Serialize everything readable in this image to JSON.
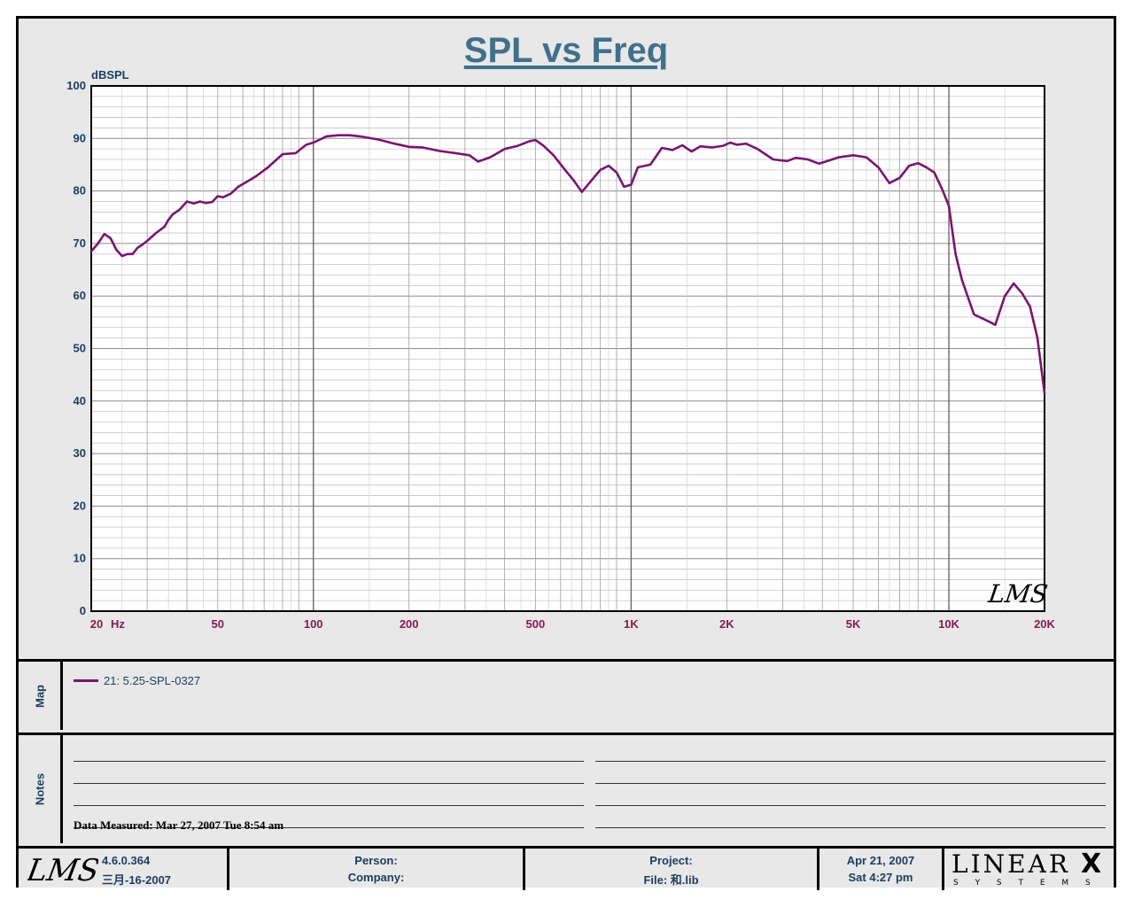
{
  "title": "SPL vs Freq",
  "chart_data": {
    "type": "line",
    "title": "SPL vs Freq",
    "ylabel": "dBSPL",
    "xlabel": "Hz",
    "x_scale": "log",
    "xlim": [
      20,
      20000
    ],
    "ylim": [
      0,
      100
    ],
    "grid": true,
    "y_ticks": [
      0,
      10,
      20,
      30,
      40,
      50,
      60,
      70,
      80,
      90,
      100
    ],
    "x_ticks": [
      {
        "value": 20,
        "label": "20"
      },
      {
        "value": 50,
        "label": "50"
      },
      {
        "value": 100,
        "label": "100"
      },
      {
        "value": 200,
        "label": "200"
      },
      {
        "value": 500,
        "label": "500"
      },
      {
        "value": 1000,
        "label": "1K"
      },
      {
        "value": 2000,
        "label": "2K"
      },
      {
        "value": 5000,
        "label": "5K"
      },
      {
        "value": 10000,
        "label": "10K"
      },
      {
        "value": 20000,
        "label": "20K"
      }
    ],
    "x_unit_label": "Hz",
    "series": [
      {
        "name": "21: 5.25-SPL-0327",
        "color": "#7a1572",
        "x": [
          20,
          21,
          22,
          23,
          24,
          25,
          26,
          27,
          28,
          29,
          30,
          32,
          34,
          35,
          36,
          38,
          40,
          42,
          44,
          46,
          48,
          50,
          52,
          55,
          58,
          62,
          66,
          72,
          80,
          88,
          95,
          100,
          105,
          110,
          120,
          130,
          140,
          160,
          180,
          200,
          220,
          250,
          280,
          310,
          330,
          360,
          400,
          440,
          480,
          500,
          530,
          570,
          620,
          660,
          700,
          750,
          800,
          850,
          900,
          950,
          1000,
          1050,
          1150,
          1250,
          1350,
          1450,
          1550,
          1650,
          1800,
          1950,
          2050,
          2150,
          2300,
          2500,
          2800,
          3100,
          3300,
          3600,
          3900,
          4100,
          4500,
          5000,
          5500,
          6000,
          6500,
          7000,
          7500,
          8000,
          8500,
          9000,
          9500,
          10000,
          10500,
          11000,
          12000,
          13000,
          13500,
          14000,
          15000,
          16000,
          17000,
          18000,
          19000,
          20000
        ],
        "y": [
          68.5,
          70.0,
          71.8,
          71.0,
          68.8,
          67.6,
          68.0,
          68.0,
          69.2,
          69.8,
          70.5,
          72.0,
          73.2,
          74.5,
          75.5,
          76.5,
          78.0,
          77.6,
          78.0,
          77.7,
          77.9,
          79.0,
          78.8,
          79.5,
          80.8,
          81.8,
          82.8,
          84.5,
          87.0,
          87.2,
          88.8,
          89.2,
          89.8,
          90.4,
          90.6,
          90.6,
          90.4,
          89.8,
          89.0,
          88.4,
          88.3,
          87.6,
          87.2,
          86.8,
          85.6,
          86.4,
          88.0,
          88.6,
          89.5,
          89.7,
          88.6,
          86.8,
          84.0,
          82.0,
          79.8,
          82.0,
          84.0,
          84.8,
          83.5,
          80.8,
          81.2,
          84.5,
          85.0,
          88.2,
          87.8,
          88.7,
          87.5,
          88.5,
          88.3,
          88.6,
          89.2,
          88.8,
          89.0,
          88.0,
          86.0,
          85.7,
          86.3,
          86.0,
          85.2,
          85.6,
          86.4,
          86.8,
          86.4,
          84.5,
          81.5,
          82.5,
          84.8,
          85.3,
          84.5,
          83.5,
          80.5,
          77.2,
          68.0,
          63.0,
          56.5,
          55.5,
          55.0,
          54.5,
          60.0,
          62.4,
          60.5,
          58.0,
          52.0,
          41.5
        ]
      }
    ]
  },
  "map": {
    "label": "Map",
    "legend_entry": "21: 5.25-SPL-0327",
    "legend_color": "#7a1572"
  },
  "notes": {
    "label": "Notes",
    "measured": "Data Measured: Mar 27, 2007  Tue  8:54 am"
  },
  "footer": {
    "logo_text": "LMS",
    "version": "4.6.0.364",
    "build_date": "三月-16-2007",
    "person_label": "Person:",
    "company_label": "Company:",
    "project_label": "Project:",
    "file_label": "File: 和.lib",
    "date": "Apr 21, 2007",
    "time": "Sat  4:27 pm",
    "brand": "LINEAR",
    "brand_x": "X",
    "brand_sub": "S Y S T E M S"
  },
  "watermark": "LMS",
  "colors": {
    "axis_label": "#1b3d5e",
    "x_tick_label": "#8b1a4a",
    "title": "#41708c",
    "curve": "#7a1572"
  }
}
